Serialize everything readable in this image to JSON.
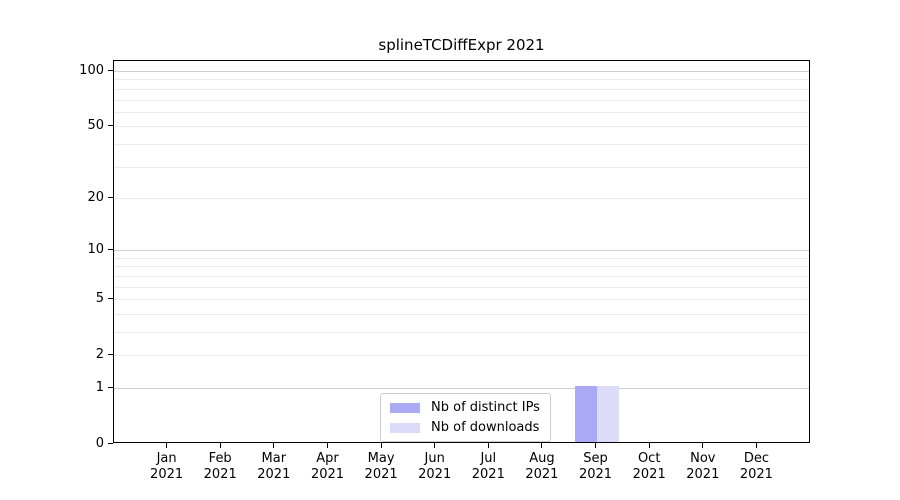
{
  "title": "splineTCDiffExpr 2021",
  "colors": {
    "bar_distinct_ips": "#a9a9f5",
    "bar_downloads": "#dcdcfa",
    "grid_major": "#cfcfcf",
    "grid_minor": "#ececec",
    "axis": "#000000",
    "legend_border": "#cccccc",
    "text": "#000000"
  },
  "legend": {
    "items": [
      {
        "label": "Nb of distinct IPs"
      },
      {
        "label": "Nb of downloads"
      }
    ]
  },
  "chart_data": {
    "type": "bar",
    "title": "splineTCDiffExpr 2021",
    "categories": [
      "Jan 2021",
      "Feb 2021",
      "Mar 2021",
      "Apr 2021",
      "May 2021",
      "Jun 2021",
      "Jul 2021",
      "Aug 2021",
      "Sep 2021",
      "Oct 2021",
      "Nov 2021",
      "Dec 2021"
    ],
    "series": [
      {
        "name": "Nb of distinct IPs",
        "color": "#a9a9f5",
        "values": [
          0,
          0,
          0,
          0,
          0,
          0,
          0,
          0,
          1,
          0,
          0,
          0
        ]
      },
      {
        "name": "Nb of downloads",
        "color": "#dcdcfa",
        "values": [
          0,
          0,
          0,
          0,
          0,
          0,
          0,
          0,
          1,
          0,
          0,
          0
        ]
      }
    ],
    "xlabel": "",
    "ylabel": "",
    "yscale": "log1p",
    "ylim": [
      0,
      113
    ],
    "y_tick_values": [
      0,
      1,
      2,
      5,
      10,
      20,
      50,
      100
    ],
    "y_tick_labels": [
      "0",
      "1",
      "2",
      "5",
      "10",
      "20",
      "50",
      "100"
    ],
    "y_major_grid_values": [
      1,
      10,
      100
    ],
    "y_minor_grid_values": [
      2,
      3,
      4,
      5,
      6,
      7,
      8,
      9,
      20,
      30,
      40,
      50,
      60,
      70,
      80,
      90
    ],
    "grid": "horizontal",
    "legend_position": "lower center"
  }
}
